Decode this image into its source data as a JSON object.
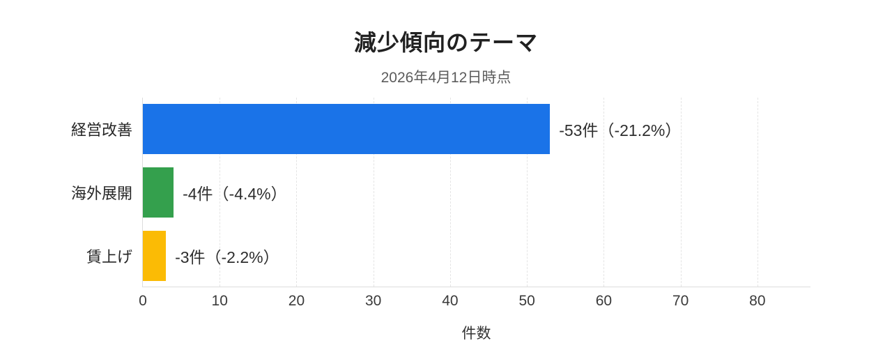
{
  "page": {
    "background": "#ffffff"
  },
  "chart_data": {
    "type": "bar",
    "orientation": "horizontal",
    "title": "減少傾向のテーマ",
    "subtitle": "2026年4月12日時点",
    "xlabel": "件数",
    "categories": [
      "経営改善",
      "海外展開",
      "賃上げ"
    ],
    "values": [
      53,
      4,
      3
    ],
    "bar_labels": [
      "-53件（-21.2%）",
      "-4件（-4.4%）",
      "-3件（-2.2%）"
    ],
    "bar_colors": [
      "#1a73e8",
      "#34a04d",
      "#fbbb05"
    ],
    "xticks": [
      0,
      10,
      20,
      30,
      40,
      50,
      60,
      70,
      80
    ],
    "xlim": [
      0,
      87
    ],
    "grid": {
      "vertical": true,
      "style": "dashed",
      "color": "#e4e4e4"
    },
    "axis_color": "#dcdcdc",
    "legend": "none"
  }
}
